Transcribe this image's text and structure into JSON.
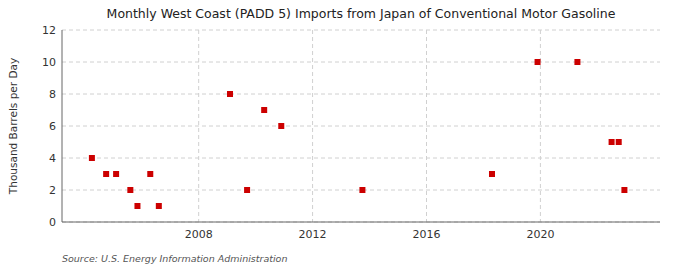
{
  "chart_data": {
    "type": "scatter",
    "title": "Monthly West Coast (PADD 5) Imports from Japan of Conventional Motor Gasoline",
    "y_label": "Thousand Barrels per Day",
    "annotations": [
      "Source: U.S. Energy Information Administration"
    ],
    "x": [
      2004.25,
      2004.75,
      2005.1,
      2005.6,
      2005.85,
      2006.3,
      2006.6,
      2009.1,
      2009.7,
      2010.3,
      2010.9,
      2013.75,
      2018.3,
      2019.9,
      2021.3,
      2022.5,
      2022.75,
      2022.95
    ],
    "values": [
      4,
      3,
      3,
      2,
      1,
      3,
      1,
      8,
      2,
      7,
      6,
      2,
      3,
      10,
      10,
      5,
      5,
      2
    ],
    "color": "#cc0000",
    "marker": "square",
    "xlim": [
      2003.2,
      2024.2
    ],
    "ylim": [
      0,
      12
    ],
    "xticks": [
      2008,
      2012,
      2016,
      2020
    ],
    "yticks": [
      0,
      2,
      4,
      6,
      8,
      10,
      12
    ],
    "grid": true
  }
}
